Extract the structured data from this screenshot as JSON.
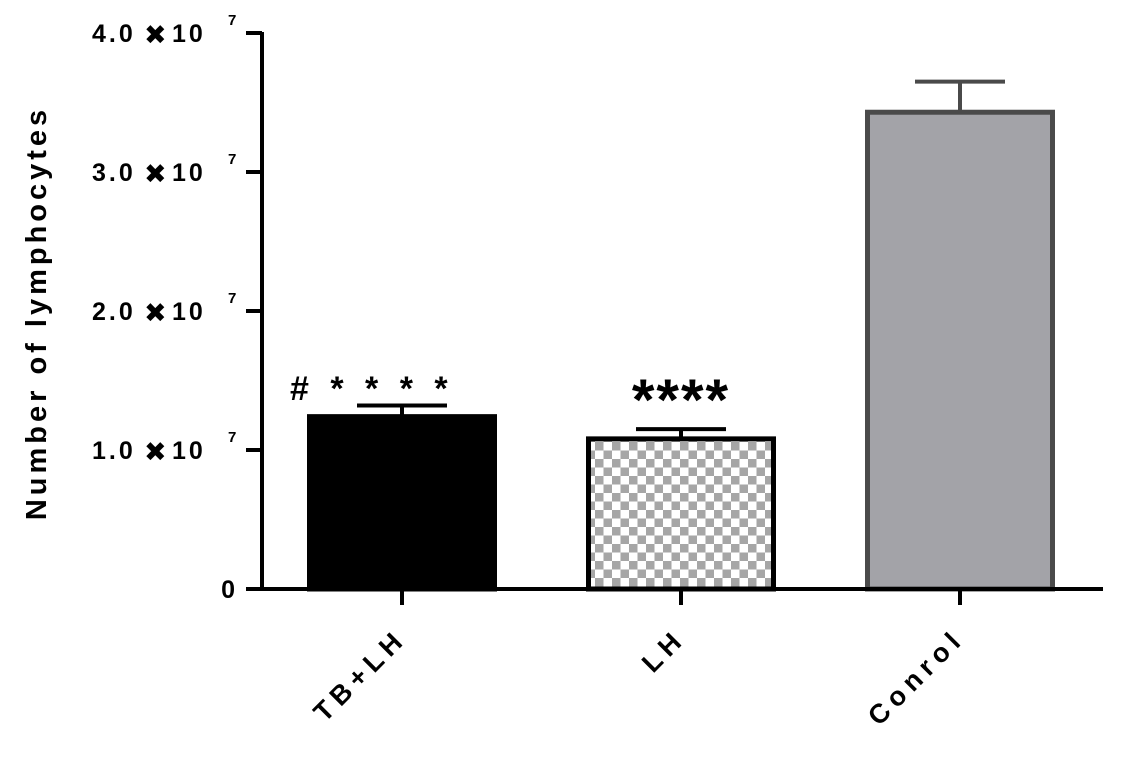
{
  "chart_data": {
    "type": "bar",
    "ylabel": "Number of lymphocytes",
    "xlabel": "",
    "ylim": [
      0,
      40000000
    ],
    "y_ticks": [
      {
        "value": 0,
        "mantissa": "0",
        "mult": "",
        "exp": ""
      },
      {
        "value": 10000000,
        "mantissa": "1.0",
        "mult": "✖",
        "exp": "10",
        "power": "7"
      },
      {
        "value": 20000000,
        "mantissa": "2.0",
        "mult": "✖",
        "exp": "10",
        "power": "7"
      },
      {
        "value": 30000000,
        "mantissa": "3.0",
        "mult": "✖",
        "exp": "10",
        "power": "7"
      },
      {
        "value": 40000000,
        "mantissa": "4.0",
        "mult": "✖",
        "exp": "10",
        "power": "7"
      }
    ],
    "categories": [
      "TB+LH",
      "LH",
      "Conrol"
    ],
    "values": [
      12400000,
      10800000,
      34300000
    ],
    "errors": [
      800000,
      700000,
      2200000
    ],
    "bar_styles": [
      {
        "fill": "#000000",
        "stroke": "#000000",
        "pattern": "solid"
      },
      {
        "fill": "#a6a6a6",
        "stroke": "#000000",
        "pattern": "checker"
      },
      {
        "fill": "#a3a3a8",
        "stroke": "#4a4a4a",
        "pattern": "solid"
      }
    ],
    "annotations": [
      {
        "category": "TB+LH",
        "text": "# * * * *",
        "style": "small"
      },
      {
        "category": "LH",
        "text": "****",
        "style": "big"
      }
    ],
    "grid": false,
    "legend": "none"
  }
}
